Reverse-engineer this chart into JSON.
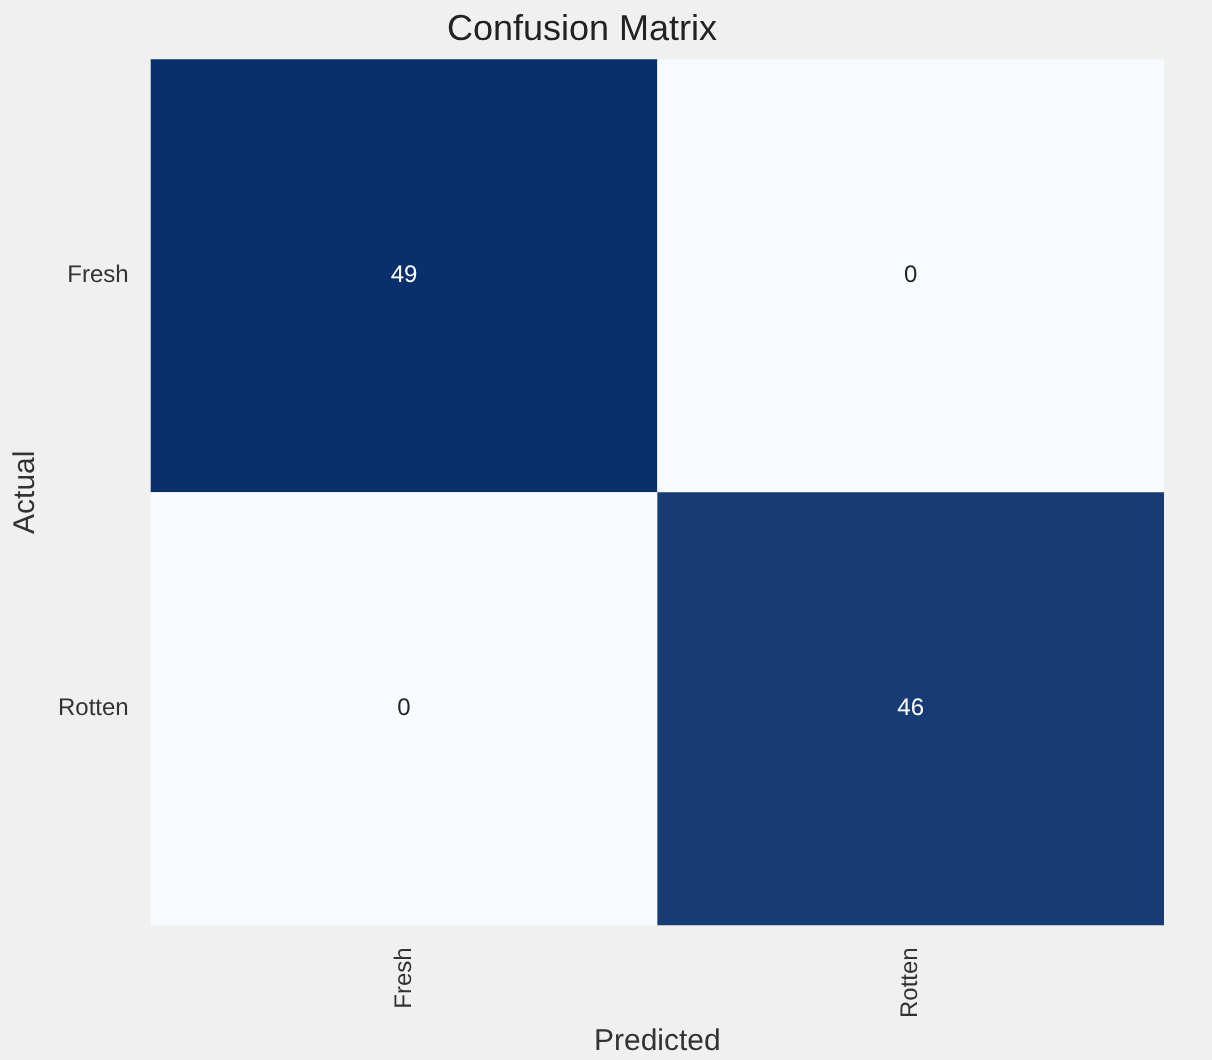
{
  "chart_data": {
    "type": "heatmap",
    "title": "Confusion Matrix",
    "xlabel": "Predicted",
    "ylabel": "Actual",
    "categories": [
      "Fresh",
      "Rotten"
    ],
    "y_categories": [
      "Fresh",
      "Rotten"
    ],
    "cells": [
      [
        49,
        0
      ],
      [
        0,
        46
      ]
    ],
    "data_labels": true
  }
}
